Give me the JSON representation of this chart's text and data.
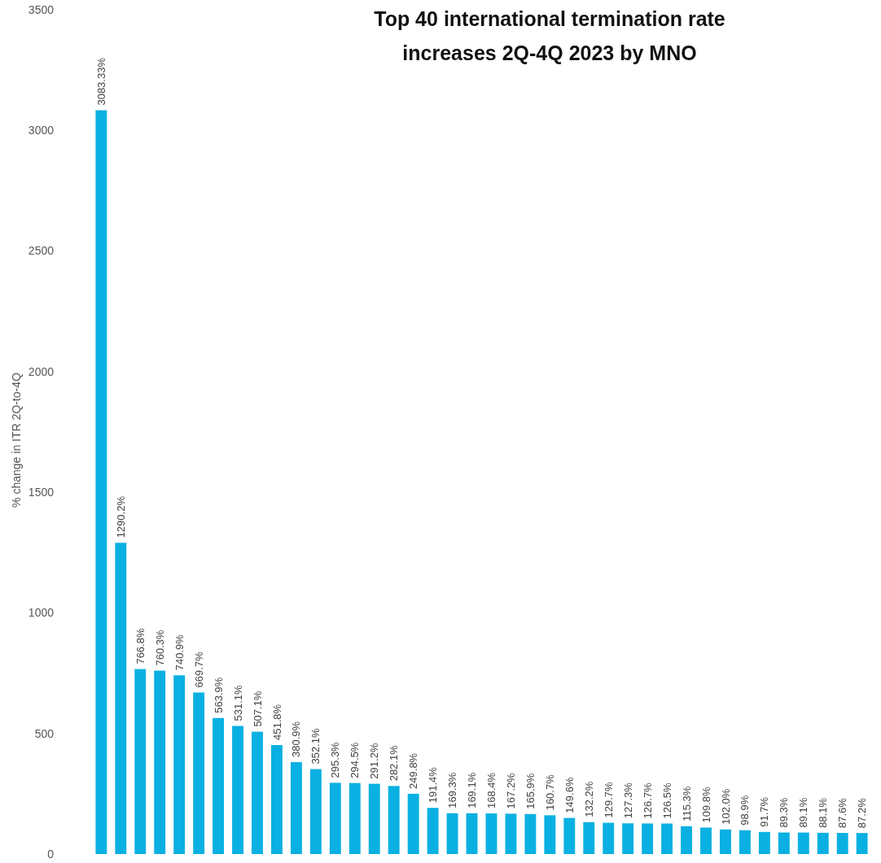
{
  "chart_data": {
    "type": "bar",
    "title": "Top 40 international termination rate increases 2Q-4Q 2023 by MNO",
    "ylabel": "% change in ITR 2Q-to-4Q",
    "categories": [
      null,
      null,
      null,
      null,
      null,
      null,
      null,
      null,
      null,
      null,
      null,
      null,
      null,
      null,
      null,
      null,
      null,
      null,
      null,
      null,
      null,
      null,
      null,
      null,
      null,
      null,
      null,
      null,
      null,
      null,
      null,
      null,
      null,
      null,
      null,
      null,
      null,
      null,
      null,
      null
    ],
    "values": [
      3083.33,
      1290.2,
      766.8,
      760.3,
      740.9,
      669.7,
      563.9,
      531.1,
      507.1,
      451.8,
      380.9,
      352.1,
      295.3,
      294.5,
      291.2,
      282.1,
      249.8,
      191.4,
      169.3,
      169.1,
      168.4,
      167.2,
      165.9,
      160.7,
      149.6,
      132.2,
      129.7,
      127.3,
      126.7,
      126.5,
      115.3,
      109.8,
      102.0,
      98.9,
      91.7,
      89.3,
      89.1,
      88.1,
      87.6,
      87.2
    ],
    "value_labels": [
      "3083.33%",
      "1290.2%",
      "766.8%",
      "760.3%",
      "740.9%",
      "669.7%",
      "563.9%",
      "531.1%",
      "507.1%",
      "451.8%",
      "380.9%",
      "352.1%",
      "295.3%",
      "294.5%",
      "291.2%",
      "282.1%",
      "249.8%",
      "191.4%",
      "169.3%",
      "169.1%",
      "168.4%",
      "167.2%",
      "165.9%",
      "160.7%",
      "149.6%",
      "132.2%",
      "129.7%",
      "127.3%",
      "126.7%",
      "126.5%",
      "115.3%",
      "109.8%",
      "102.0%",
      "98.9%",
      "91.7%",
      "89.3%",
      "89.1%",
      "88.1%",
      "87.6%",
      "87.2%"
    ],
    "color": "#0ab0e2",
    "ylim": [
      0,
      3500
    ],
    "yticks": [
      0,
      500,
      1000,
      1500,
      2000,
      2500,
      3000,
      3500
    ],
    "grid": false
  }
}
